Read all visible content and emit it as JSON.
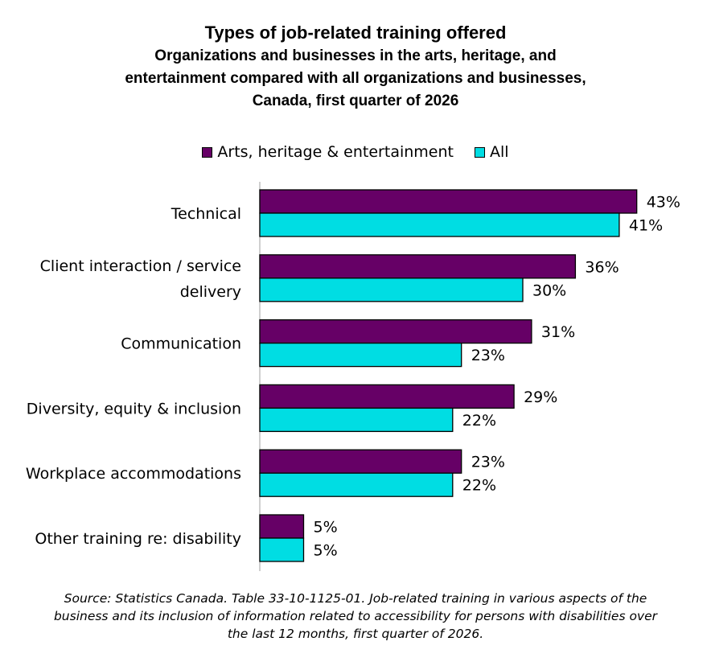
{
  "chart_data": {
    "type": "bar",
    "orientation": "horizontal",
    "title": "Types of job-related training offered",
    "subtitle_lines": [
      "Organizations and businesses in the arts, heritage, and",
      "entertainment compared with all organizations and businesses,",
      "Canada, first quarter of 2026"
    ],
    "categories": [
      [
        "Technical"
      ],
      [
        "Client interaction / service",
        "delivery"
      ],
      [
        "Communication"
      ],
      [
        "Diversity, equity & inclusion"
      ],
      [
        "Workplace accommodations"
      ],
      [
        "Other training re: disability"
      ]
    ],
    "series": [
      {
        "name": "Arts, heritage & entertainment",
        "color": "#660066",
        "values": [
          43,
          36,
          31,
          29,
          23,
          5
        ],
        "labels": [
          "43%",
          "36%",
          "31%",
          "29%",
          "23%",
          "5%"
        ]
      },
      {
        "name": "All",
        "color": "#00DDE3",
        "values": [
          41,
          30,
          23,
          22,
          22,
          5
        ],
        "labels": [
          "41%",
          "30%",
          "23%",
          "22%",
          "22%",
          "5%"
        ]
      }
    ],
    "xlim": [
      0,
      50
    ],
    "grid": false,
    "legend_position": "top-center",
    "source_lines": [
      "Source: Statistics Canada. Table 33-10-1125-01. Job-related training in various aspects of the",
      "business and its inclusion of information related to accessibility for persons with disabilities over",
      "the last 12 months, first quarter of 2026."
    ]
  }
}
